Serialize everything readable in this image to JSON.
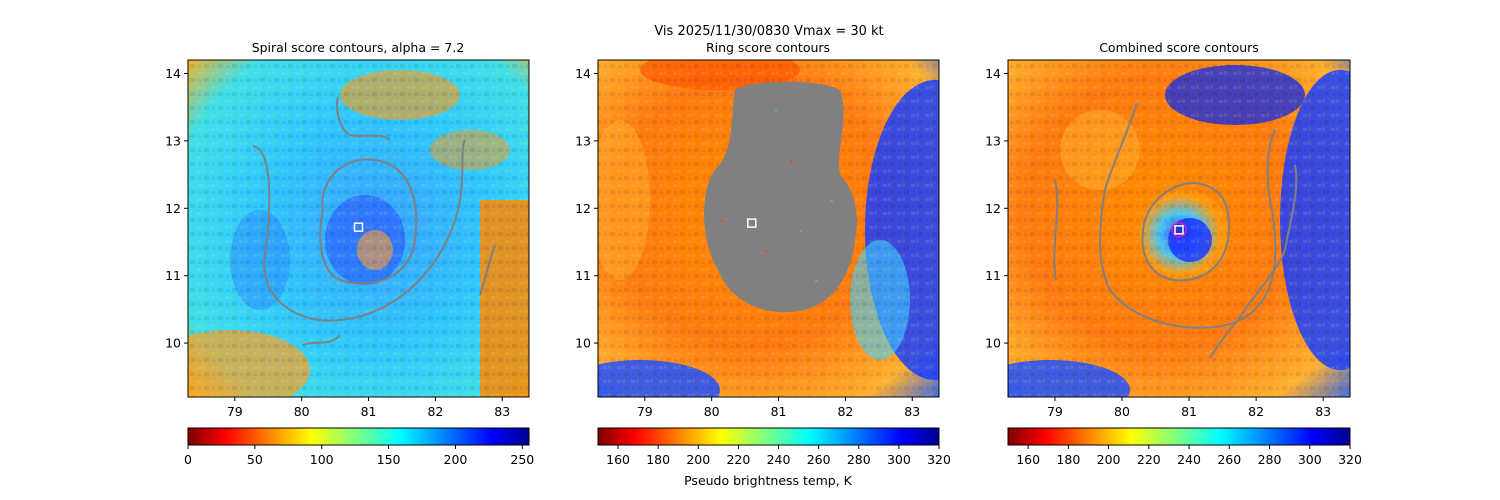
{
  "suptitle": "Vis  2025/11/30/0830    Vmax = 30 kt",
  "chart_data": [
    {
      "type": "heatmap",
      "title": "Spiral score contours, alpha =  7.2",
      "xlim": [
        78.3,
        83.4
      ],
      "ylim": [
        9.2,
        14.2
      ],
      "x_ticks": [
        "79",
        "80",
        "81",
        "82",
        "83"
      ],
      "y_ticks": [
        "10",
        "11",
        "12",
        "13",
        "14"
      ],
      "colormap": "jet_r",
      "colorbar": {
        "min": 0,
        "max": 255,
        "ticks": [
          "0",
          "50",
          "100",
          "150",
          "200",
          "250"
        ],
        "label": ""
      },
      "center_marker": {
        "lon": 80.85,
        "lat": 11.72,
        "color": "#ffffff"
      }
    },
    {
      "type": "heatmap",
      "title": "Ring score contours",
      "xlim": [
        78.3,
        83.4
      ],
      "ylim": [
        9.2,
        14.2
      ],
      "x_ticks": [
        "79",
        "80",
        "81",
        "82",
        "83"
      ],
      "y_ticks": [
        "10",
        "11",
        "12",
        "13",
        "14"
      ],
      "colormap": "jet_r",
      "colorbar": {
        "min": 150,
        "max": 320,
        "ticks": [
          "160",
          "180",
          "200",
          "220",
          "240",
          "260",
          "280",
          "300",
          "320"
        ],
        "label": "Pseudo brightness temp, K"
      },
      "center_marker": {
        "lon": 80.6,
        "lat": 11.78,
        "color": "#ffffff"
      },
      "masked_region_color": "#808080"
    },
    {
      "type": "heatmap",
      "title": "Combined score contours",
      "xlim": [
        78.3,
        83.4
      ],
      "ylim": [
        9.2,
        14.2
      ],
      "x_ticks": [
        "79",
        "80",
        "81",
        "82",
        "83"
      ],
      "y_ticks": [
        "10",
        "11",
        "12",
        "13",
        "14"
      ],
      "colormap": "jet_r",
      "colorbar": {
        "min": 150,
        "max": 320,
        "ticks": [
          "160",
          "180",
          "200",
          "220",
          "240",
          "260",
          "280",
          "300",
          "320"
        ],
        "label": ""
      },
      "center_marker": {
        "lon": 80.85,
        "lat": 11.68,
        "color": "#ffffff",
        "ring_color": "#cc22cc"
      }
    }
  ],
  "colors": {
    "contour": "#808080",
    "mask": "#808080"
  }
}
